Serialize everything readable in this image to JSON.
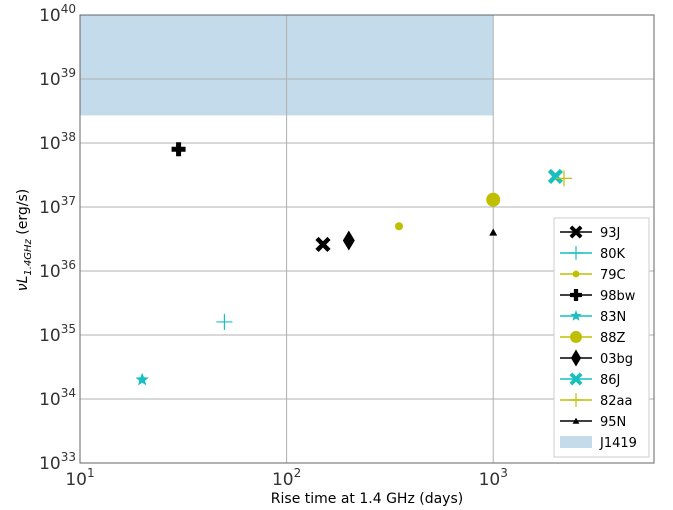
{
  "chart_data": {
    "type": "scatter",
    "xlabel": "Rise time at 1.4 GHz (days)",
    "ylabel": "νL_{1.4GHz} (erg/s)",
    "ylabel_main": "νL",
    "ylabel_sub": "1.4GHz",
    "ylabel_unit": " (erg/s)",
    "xscale": "log",
    "yscale": "log",
    "xlim": [
      10,
      6000
    ],
    "ylim": [
      1e+33,
      1e+40
    ],
    "grid": true,
    "legend_position": "right",
    "x_ticks": [
      {
        "base": "10",
        "exp": "1",
        "value": 10
      },
      {
        "base": "10",
        "exp": "2",
        "value": 100
      },
      {
        "base": "10",
        "exp": "3",
        "value": 1000
      }
    ],
    "y_ticks": [
      {
        "base": "10",
        "exp": "33",
        "value": 1e+33
      },
      {
        "base": "10",
        "exp": "34",
        "value": 1e+34
      },
      {
        "base": "10",
        "exp": "35",
        "value": 1e+35
      },
      {
        "base": "10",
        "exp": "36",
        "value": 1e+36
      },
      {
        "base": "10",
        "exp": "37",
        "value": 1e+37
      },
      {
        "base": "10",
        "exp": "38",
        "value": 1e+38
      },
      {
        "base": "10",
        "exp": "39",
        "value": 1e+39
      },
      {
        "base": "10",
        "exp": "40",
        "value": 1e+40
      }
    ],
    "series": [
      {
        "name": "93J",
        "marker": "x-thick",
        "color": "#000000",
        "x": [
          150
        ],
        "y": [
          2.6e+36
        ]
      },
      {
        "name": "80K",
        "marker": "plus-thin",
        "color": "#17bfbf",
        "x": [
          50
        ],
        "y": [
          1.6e+35
        ]
      },
      {
        "name": "79C",
        "marker": "circle-small",
        "color": "#bfbf00",
        "x": [
          350
        ],
        "y": [
          5e+36
        ]
      },
      {
        "name": "98bw",
        "marker": "plus-thick",
        "color": "#000000",
        "x": [
          30
        ],
        "y": [
          8e+37
        ]
      },
      {
        "name": "83N",
        "marker": "star",
        "color": "#17bfbf",
        "x": [
          20
        ],
        "y": [
          2e+34
        ]
      },
      {
        "name": "88Z",
        "marker": "circle-large",
        "color": "#bfbf00",
        "x": [
          1000
        ],
        "y": [
          1.3e+37
        ]
      },
      {
        "name": "03bg",
        "marker": "diamond",
        "color": "#000000",
        "x": [
          200
        ],
        "y": [
          3e+36
        ]
      },
      {
        "name": "86J",
        "marker": "x-thick",
        "color": "#17bfbf",
        "x": [
          2000
        ],
        "y": [
          3e+37
        ]
      },
      {
        "name": "82aa",
        "marker": "plus-thin",
        "color": "#bfbf00",
        "x": [
          2200
        ],
        "y": [
          2.8e+37
        ]
      },
      {
        "name": "95N",
        "marker": "triangle",
        "color": "#000000",
        "x": [
          1000
        ],
        "y": [
          4e+36
        ]
      }
    ],
    "region": {
      "name": "J1419",
      "color": "#c3dbeb",
      "x_range": [
        10,
        1000
      ],
      "y_range": [
        2.7e+38,
        1e+40
      ]
    }
  }
}
